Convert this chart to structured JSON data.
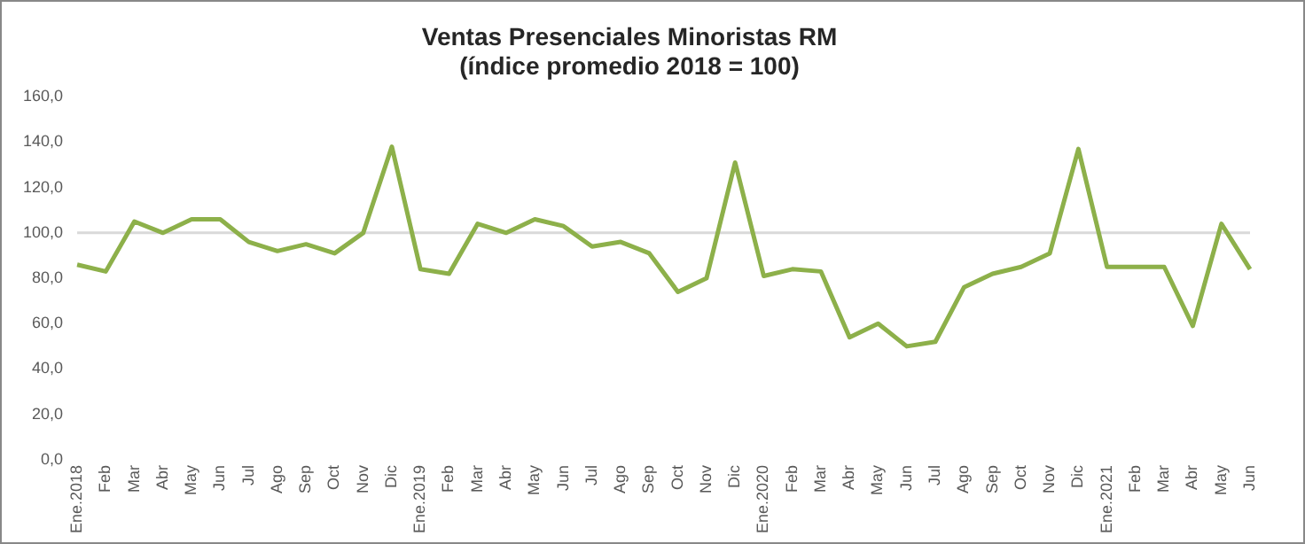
{
  "chart_data": {
    "type": "line",
    "title": [
      "Ventas Presenciales Minoristas RM",
      "(índice promedio 2018 = 100)"
    ],
    "categories": [
      "Ene.2018",
      "Feb",
      "Mar",
      "Abr",
      "May",
      "Jun",
      "Jul",
      "Ago",
      "Sep",
      "Oct",
      "Nov",
      "Dic",
      "Ene.2019",
      "Feb",
      "Mar",
      "Abr",
      "May",
      "Jun",
      "Jul",
      "Ago",
      "Sep",
      "Oct",
      "Nov",
      "Dic",
      "Ene.2020",
      "Feb",
      "Mar",
      "Abr",
      "May",
      "Jun",
      "Jul",
      "Ago",
      "Sep",
      "Oct",
      "Nov",
      "Dic",
      "Ene.2021",
      "Feb",
      "Mar",
      "Abr",
      "May",
      "Jun"
    ],
    "series": [
      {
        "color": "#8db04a",
        "values": [
          86,
          83,
          105,
          100,
          106,
          106,
          96,
          92,
          95,
          91,
          100,
          138,
          84,
          82,
          104,
          100,
          106,
          103,
          94,
          96,
          91,
          74,
          80,
          131,
          81,
          84,
          83,
          54,
          60,
          50,
          52,
          76,
          82,
          85,
          91,
          137,
          85,
          85,
          85,
          59,
          104,
          84
        ]
      }
    ],
    "ylim": [
      0,
      160
    ],
    "yticks": [
      {
        "value": 0,
        "label": "0,0"
      },
      {
        "value": 20,
        "label": "20,0"
      },
      {
        "value": 40,
        "label": "40,0"
      },
      {
        "value": 60,
        "label": "60,0"
      },
      {
        "value": 80,
        "label": "80,0"
      },
      {
        "value": 100,
        "label": "100,0"
      },
      {
        "value": 120,
        "label": "120,0"
      },
      {
        "value": 140,
        "label": "140,0"
      },
      {
        "value": 160,
        "label": "160,0"
      }
    ],
    "ref_lines": [
      {
        "axis": "y",
        "value": 100,
        "color": "#d9d9d9"
      }
    ],
    "grid": false,
    "legend": false,
    "marker": "none",
    "line_style": "solid"
  }
}
